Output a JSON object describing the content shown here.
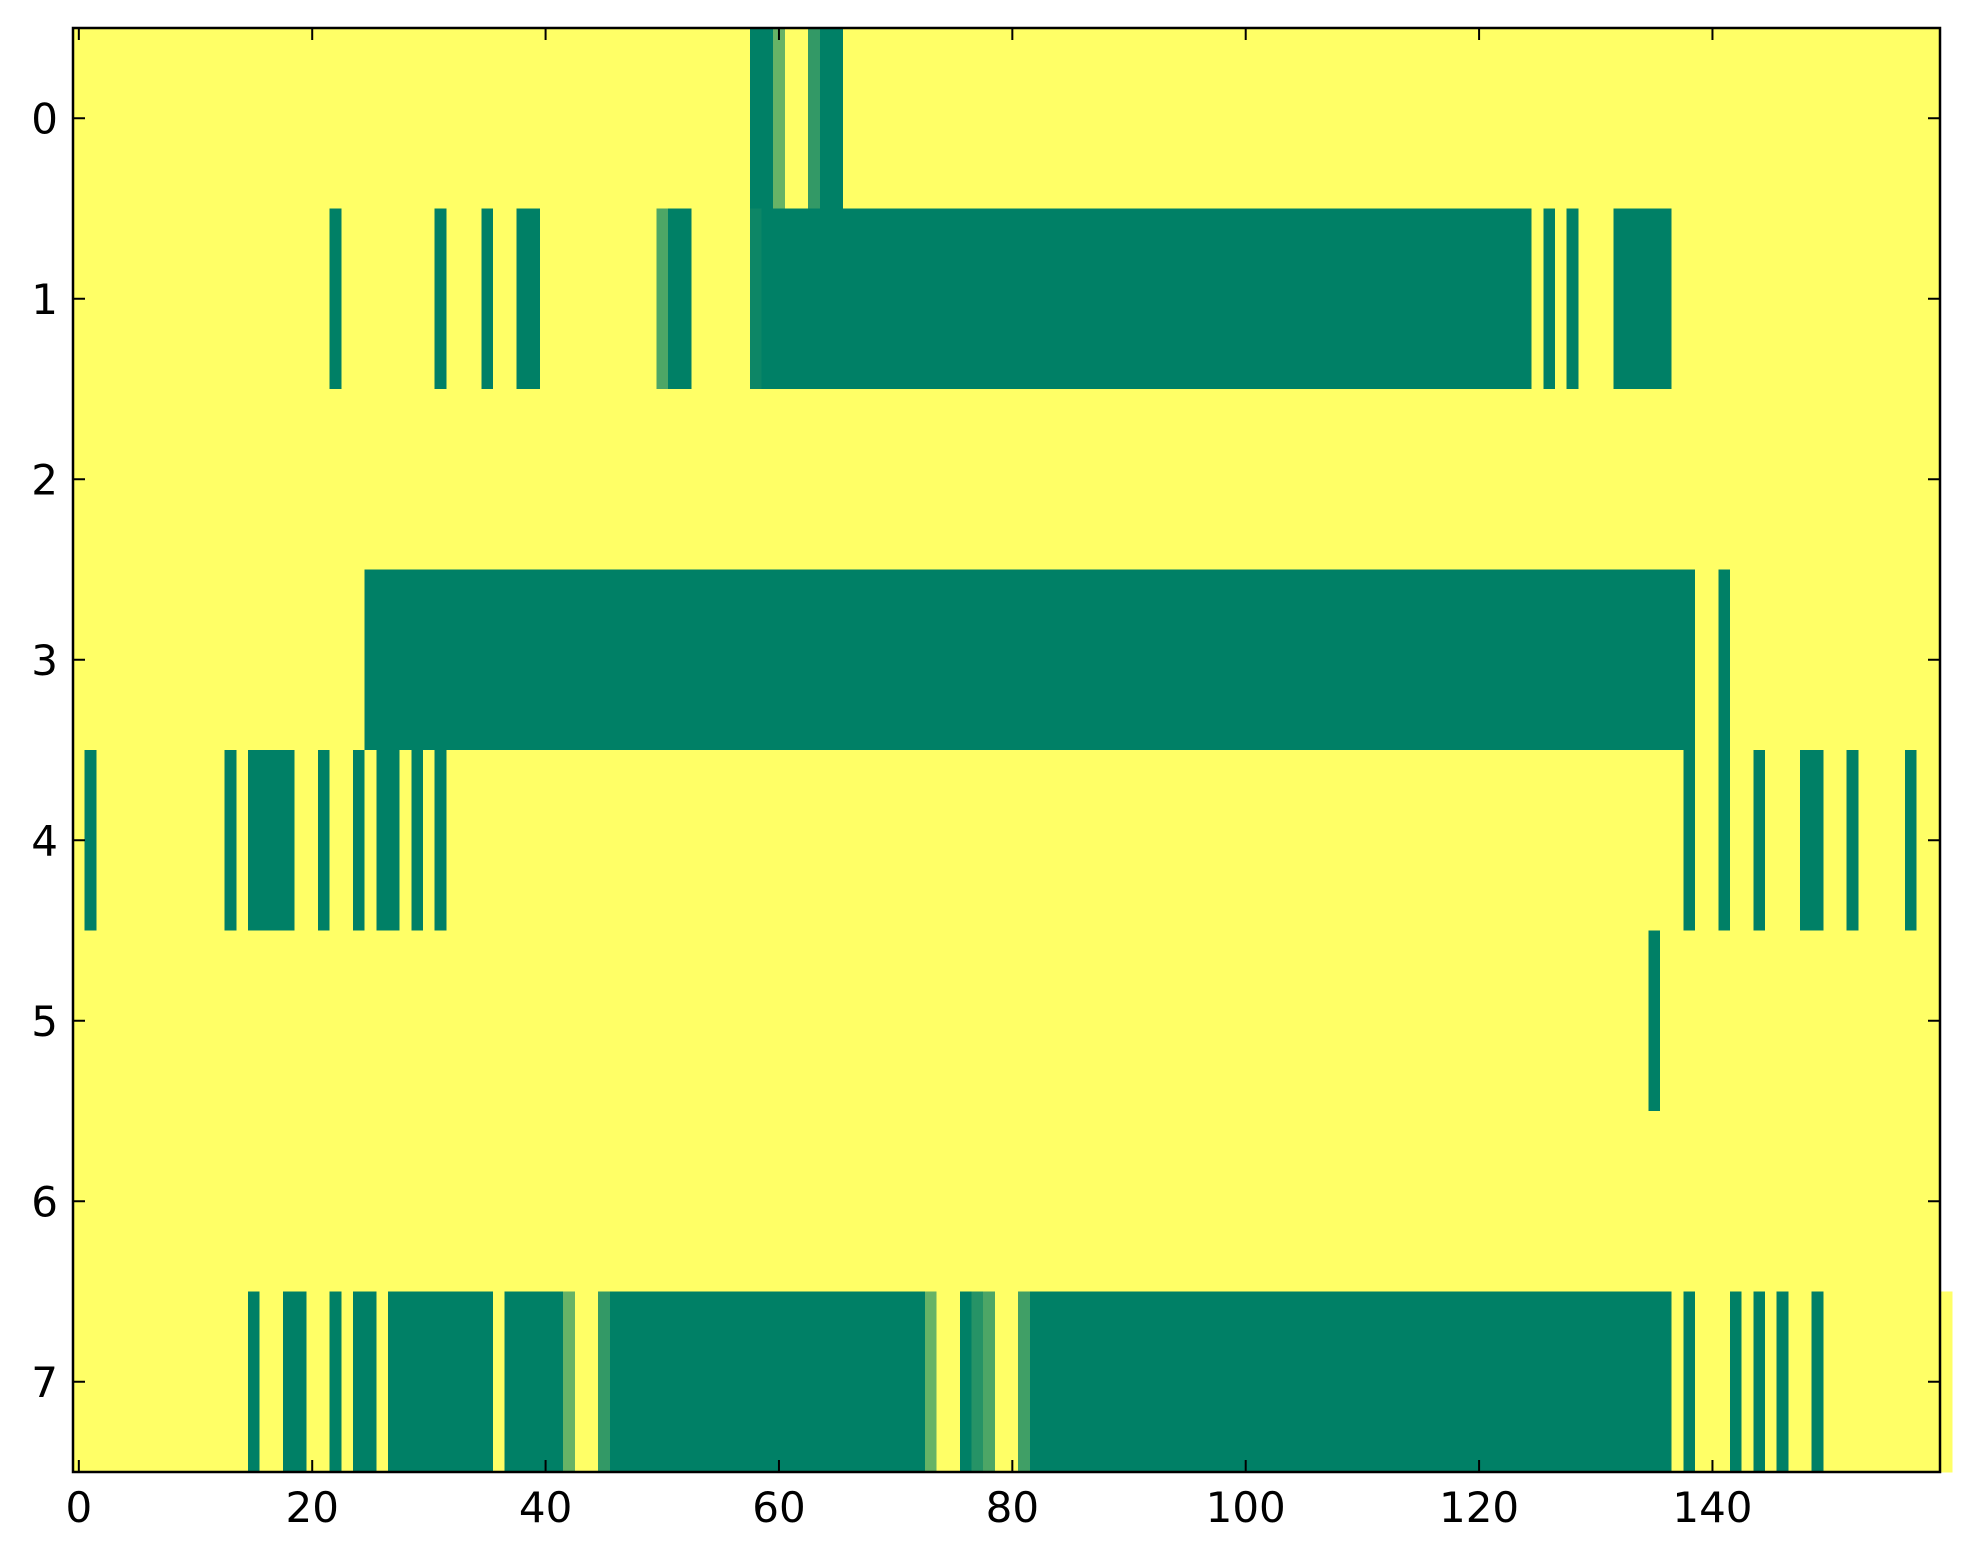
{
  "chart_data": {
    "type": "heatmap",
    "colormap": "summer",
    "clim": [
      0,
      1
    ],
    "xlim": [
      -0.5,
      159.5
    ],
    "ylim": [
      7.5,
      -0.5
    ],
    "xticks": [
      0,
      20,
      40,
      60,
      80,
      100,
      120,
      140
    ],
    "yticks": [
      0,
      1,
      2,
      3,
      4,
      5,
      6,
      7
    ],
    "values": [
      [
        1,
        1,
        1,
        1,
        1,
        1,
        1,
        1,
        1,
        1,
        1,
        1,
        1,
        1,
        1,
        1,
        1,
        1,
        1,
        1,
        1,
        1,
        1,
        1,
        1,
        1,
        1,
        1,
        1,
        1,
        1,
        1,
        1,
        1,
        1,
        1,
        1,
        1,
        1,
        1,
        1,
        1,
        1,
        1,
        1,
        1,
        1,
        1,
        1,
        1,
        1,
        1,
        1,
        1,
        1,
        1,
        1,
        1,
        0,
        0,
        0.4,
        1,
        1,
        0.2,
        0,
        0,
        1,
        1,
        1,
        1,
        1,
        1,
        1,
        1,
        1,
        1,
        1,
        1,
        1,
        1,
        1,
        1,
        1,
        1,
        1,
        1,
        1,
        1,
        1,
        1,
        1,
        1,
        1,
        1,
        1,
        1,
        1,
        1,
        1,
        1,
        1,
        1,
        1,
        1,
        1,
        1,
        1,
        1,
        1,
        1,
        1,
        1,
        1,
        1,
        1,
        1,
        1,
        1,
        1,
        1,
        1,
        1,
        1,
        1,
        1,
        1,
        1,
        1,
        1,
        1,
        1,
        1,
        1,
        1,
        1,
        1,
        1,
        1,
        1,
        1,
        1,
        1,
        1,
        1,
        1,
        1,
        1,
        1,
        1,
        1,
        1,
        1,
        1,
        1,
        1,
        1,
        1,
        1,
        1,
        1
      ],
      [
        1,
        1,
        1,
        1,
        1,
        1,
        1,
        1,
        1,
        1,
        1,
        1,
        1,
        1,
        1,
        1,
        1,
        1,
        1,
        1,
        1,
        1,
        0,
        1,
        1,
        1,
        1,
        1,
        1,
        1,
        1,
        0,
        1,
        1,
        1,
        0,
        1,
        1,
        0,
        0,
        1,
        1,
        1,
        1,
        1,
        1,
        1,
        1,
        1,
        1,
        0.3,
        0,
        0,
        1,
        1,
        1,
        1,
        1,
        0.05,
        0,
        0,
        0,
        0,
        0,
        0,
        0,
        0,
        0,
        0,
        0,
        0,
        0,
        0,
        0,
        0,
        0,
        0,
        0,
        0,
        0,
        0,
        0,
        0,
        0,
        0,
        0,
        0,
        0,
        0,
        0,
        0,
        0,
        0,
        0,
        0,
        0,
        0,
        0,
        0,
        0,
        0,
        0,
        0,
        0,
        0,
        0,
        0,
        0,
        0,
        0,
        0,
        0,
        0,
        0,
        0,
        0,
        0,
        0,
        0,
        0,
        0,
        0,
        0,
        0,
        0,
        1,
        0,
        1,
        0,
        1,
        1,
        1,
        0,
        0,
        0,
        0,
        0,
        1,
        1,
        1,
        1,
        1,
        1,
        1,
        1,
        1,
        1,
        1,
        1,
        1,
        1,
        1,
        1,
        1,
        1,
        1,
        1,
        1,
        1,
        1
      ],
      [
        1,
        1,
        1,
        1,
        1,
        1,
        1,
        1,
        1,
        1,
        1,
        1,
        1,
        1,
        1,
        1,
        1,
        1,
        1,
        1,
        1,
        1,
        1,
        1,
        1,
        1,
        1,
        1,
        1,
        1,
        1,
        1,
        1,
        1,
        1,
        1,
        1,
        1,
        1,
        1,
        1,
        1,
        1,
        1,
        1,
        1,
        1,
        1,
        1,
        1,
        1,
        1,
        1,
        1,
        1,
        1,
        1,
        1,
        1,
        1,
        1,
        1,
        1,
        1,
        1,
        1,
        1,
        1,
        1,
        1,
        1,
        1,
        1,
        1,
        1,
        1,
        1,
        1,
        1,
        1,
        1,
        1,
        1,
        1,
        1,
        1,
        1,
        1,
        1,
        1,
        1,
        1,
        1,
        1,
        1,
        1,
        1,
        1,
        1,
        1,
        1,
        1,
        1,
        1,
        1,
        1,
        1,
        1,
        1,
        1,
        1,
        1,
        1,
        1,
        1,
        1,
        1,
        1,
        1,
        1,
        1,
        1,
        1,
        1,
        1,
        1,
        1,
        1,
        1,
        1,
        1,
        1,
        1,
        1,
        1,
        1,
        1,
        1,
        1,
        1,
        1,
        1,
        1,
        1,
        1,
        1,
        1,
        1,
        1,
        1,
        1,
        1,
        1,
        1,
        1,
        1,
        1,
        1,
        1,
        1
      ],
      [
        1,
        1,
        1,
        1,
        1,
        1,
        1,
        1,
        1,
        1,
        1,
        1,
        1,
        1,
        1,
        1,
        1,
        1,
        1,
        1,
        1,
        1,
        1,
        1,
        1,
        0,
        0,
        0,
        0,
        0,
        0,
        0,
        0,
        0,
        0,
        0,
        0,
        0,
        0,
        0,
        0,
        0,
        0,
        0,
        0,
        0,
        0,
        0,
        0,
        0,
        0,
        0,
        0,
        0,
        0,
        0,
        0,
        0,
        0,
        0,
        0,
        0,
        0,
        0,
        0,
        0,
        0,
        0,
        0,
        0,
        0,
        0,
        0,
        0,
        0,
        0,
        0,
        0,
        0,
        0,
        0,
        0,
        0,
        0,
        0,
        0,
        0,
        0,
        0,
        0,
        0,
        0,
        0,
        0,
        0,
        0,
        0,
        0,
        0,
        0,
        0,
        0,
        0,
        0,
        0,
        0,
        0,
        0,
        0,
        0,
        0,
        0,
        0,
        0,
        0,
        0,
        0,
        0,
        0,
        0,
        0,
        0,
        0,
        0,
        0,
        0,
        0,
        0,
        0,
        0,
        0,
        0,
        0,
        0,
        0,
        0,
        0,
        0,
        0,
        1,
        1,
        0,
        1,
        1,
        1,
        1,
        1,
        1,
        1,
        1,
        1,
        1,
        1,
        1,
        1,
        1,
        1,
        1,
        1,
        1
      ],
      [
        1,
        0,
        1,
        1,
        1,
        1,
        1,
        1,
        1,
        1,
        1,
        1,
        1,
        0,
        1,
        0,
        0,
        0,
        0,
        1,
        1,
        0,
        1,
        1,
        0,
        1,
        0,
        0,
        1,
        0,
        1,
        0,
        1,
        1,
        1,
        1,
        1,
        1,
        1,
        1,
        1,
        1,
        1,
        1,
        1,
        1,
        1,
        1,
        1,
        1,
        1,
        1,
        1,
        1,
        1,
        1,
        1,
        1,
        1,
        1,
        1,
        1,
        1,
        1,
        1,
        1,
        1,
        1,
        1,
        1,
        1,
        1,
        1,
        1,
        1,
        1,
        1,
        1,
        1,
        1,
        1,
        1,
        1,
        1,
        1,
        1,
        1,
        1,
        1,
        1,
        1,
        1,
        1,
        1,
        1,
        1,
        1,
        1,
        1,
        1,
        1,
        1,
        1,
        1,
        1,
        1,
        1,
        1,
        1,
        1,
        1,
        1,
        1,
        1,
        1,
        1,
        1,
        1,
        1,
        1,
        1,
        1,
        1,
        1,
        1,
        1,
        1,
        1,
        1,
        1,
        1,
        1,
        1,
        1,
        1,
        1,
        1,
        1,
        0,
        1,
        1,
        0,
        1,
        1,
        0,
        1,
        1,
        1,
        0,
        0,
        1,
        1,
        0,
        1,
        1,
        1,
        1,
        0,
        1,
        1
      ],
      [
        1,
        1,
        1,
        1,
        1,
        1,
        1,
        1,
        1,
        1,
        1,
        1,
        1,
        1,
        1,
        1,
        1,
        1,
        1,
        1,
        1,
        1,
        1,
        1,
        1,
        1,
        1,
        1,
        1,
        1,
        1,
        1,
        1,
        1,
        1,
        1,
        1,
        1,
        1,
        1,
        1,
        1,
        1,
        1,
        1,
        1,
        1,
        1,
        1,
        1,
        1,
        1,
        1,
        1,
        1,
        1,
        1,
        1,
        1,
        1,
        1,
        1,
        1,
        1,
        1,
        1,
        1,
        1,
        1,
        1,
        1,
        1,
        1,
        1,
        1,
        1,
        1,
        1,
        1,
        1,
        1,
        1,
        1,
        1,
        1,
        1,
        1,
        1,
        1,
        1,
        1,
        1,
        1,
        1,
        1,
        1,
        1,
        1,
        1,
        1,
        1,
        1,
        1,
        1,
        1,
        1,
        1,
        1,
        1,
        1,
        1,
        1,
        1,
        1,
        1,
        1,
        1,
        1,
        1,
        1,
        1,
        1,
        1,
        1,
        1,
        1,
        1,
        1,
        1,
        1,
        1,
        1,
        1,
        1,
        1,
        0,
        1,
        1,
        1,
        1,
        1,
        1,
        1,
        1,
        1,
        1,
        1,
        1,
        1,
        1,
        1,
        1,
        1,
        1,
        1,
        1,
        1,
        1,
        1,
        1
      ],
      [
        1,
        1,
        1,
        1,
        1,
        1,
        1,
        1,
        1,
        1,
        1,
        1,
        1,
        1,
        1,
        1,
        1,
        1,
        1,
        1,
        1,
        1,
        1,
        1,
        1,
        1,
        1,
        1,
        1,
        1,
        1,
        1,
        1,
        1,
        1,
        1,
        1,
        1,
        1,
        1,
        1,
        1,
        1,
        1,
        1,
        1,
        1,
        1,
        1,
        1,
        1,
        1,
        1,
        1,
        1,
        1,
        1,
        1,
        1,
        1,
        1,
        1,
        1,
        1,
        1,
        1,
        1,
        1,
        1,
        1,
        1,
        1,
        1,
        1,
        1,
        1,
        1,
        1,
        1,
        1,
        1,
        1,
        1,
        1,
        1,
        1,
        1,
        1,
        1,
        1,
        1,
        1,
        1,
        1,
        1,
        1,
        1,
        1,
        1,
        1,
        1,
        1,
        1,
        1,
        1,
        1,
        1,
        1,
        1,
        1,
        1,
        1,
        1,
        1,
        1,
        1,
        1,
        1,
        1,
        1,
        1,
        1,
        1,
        1,
        1,
        1,
        1,
        1,
        1,
        1,
        1,
        1,
        1,
        1,
        1,
        1,
        1,
        1,
        1,
        1,
        1,
        1,
        1,
        1,
        1,
        1,
        1,
        1,
        1,
        1,
        1,
        1,
        1,
        1,
        1,
        1,
        1,
        1,
        1,
        1
      ],
      [
        1,
        1,
        1,
        1,
        1,
        1,
        1,
        1,
        1,
        1,
        1,
        1,
        1,
        1,
        1,
        0,
        1,
        1,
        0,
        0,
        1,
        1,
        0,
        1,
        0,
        0,
        1,
        0,
        0,
        0,
        0,
        0,
        0,
        0,
        0,
        0,
        1,
        0,
        0,
        0,
        0,
        0,
        0.4,
        1,
        1,
        0.2,
        0,
        0,
        0,
        0,
        0,
        0,
        0,
        0,
        0,
        0,
        0,
        0,
        0,
        0,
        0,
        0,
        0,
        0,
        0,
        0,
        0,
        0,
        0,
        0,
        0,
        0,
        0,
        0.4,
        1,
        1,
        0,
        0.15,
        0.3,
        1,
        1,
        0.25,
        0,
        0,
        0,
        0,
        0,
        0,
        0,
        0,
        0,
        0,
        0,
        0,
        0,
        0,
        0,
        0,
        0,
        0,
        0,
        0,
        0,
        0,
        0,
        0,
        0,
        0,
        0,
        0,
        0,
        0,
        0,
        0,
        0,
        0,
        0,
        0,
        0,
        0,
        0,
        0,
        0,
        0,
        0,
        0,
        0,
        0,
        0,
        0,
        0,
        0,
        0,
        0,
        0,
        0,
        0,
        1,
        0,
        1,
        1,
        1,
        0,
        1,
        0,
        1,
        0,
        1,
        1,
        0,
        1,
        1,
        1,
        1,
        1,
        1,
        1,
        1,
        1,
        1,
        1
      ]
    ]
  }
}
